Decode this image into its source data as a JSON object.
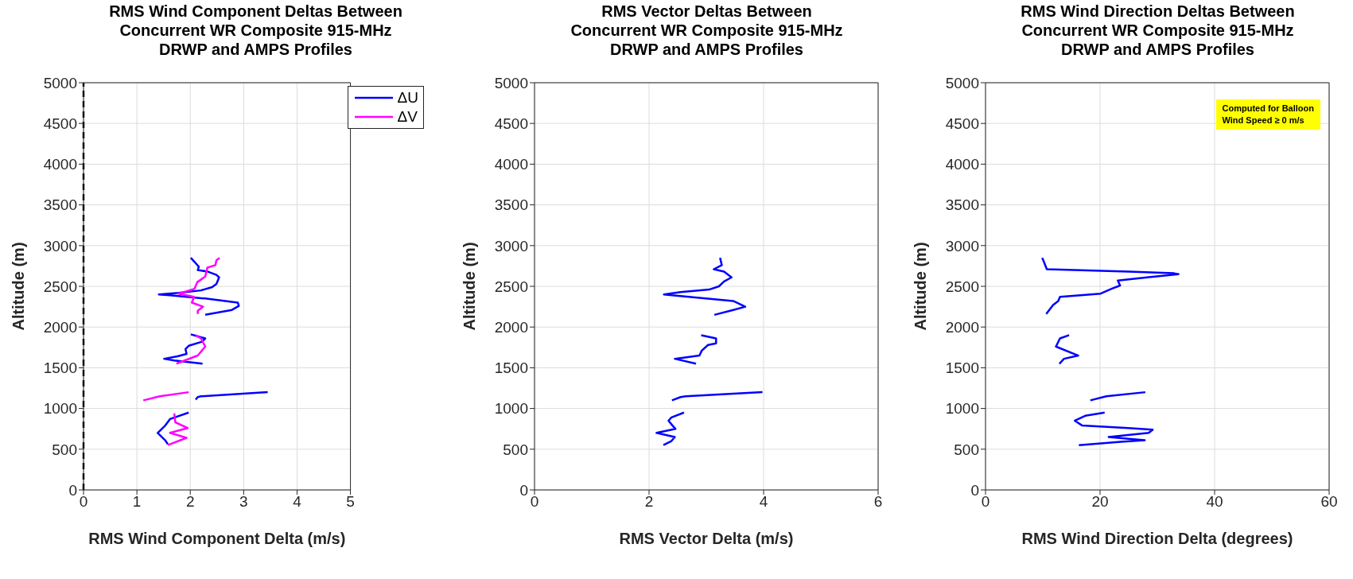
{
  "chart_data": [
    {
      "type": "line",
      "title": "RMS Wind Component Deltas Between\nConcurrent WR Composite 915-MHz\nDRWP and AMPS Profiles",
      "xlabel": "RMS Wind Component Delta (m/s)",
      "ylabel": "Altitude (m)",
      "xlim": [
        0,
        5
      ],
      "xticks": [
        0,
        1,
        2,
        3,
        4,
        5
      ],
      "ylim": [
        0,
        5000
      ],
      "yticks": [
        0,
        500,
        1000,
        1500,
        2000,
        2500,
        3000,
        3500,
        4000,
        4500,
        5000
      ],
      "grid": true,
      "legend": "top right",
      "ref_lines": [
        {
          "axis": "x",
          "value": 0,
          "color": "#000000",
          "line_style": "dashed"
        }
      ],
      "series": [
        {
          "name": "ΔU",
          "color": "#0000ff",
          "x": [
            2.01,
            2.08,
            2.16,
            2.14,
            2.33,
            2.49,
            2.54,
            2.49,
            2.41,
            2.2,
            1.78,
            1.41,
            1.62,
            2.28,
            2.89,
            2.91,
            2.78,
            2.28,
            null,
            2.01,
            2.12,
            2.28,
            2.22,
            1.97,
            1.91,
            1.93,
            1.76,
            1.51,
            1.7,
            2.23,
            null,
            3.45,
            2.2,
            2.14,
            2.1,
            null,
            1.97,
            1.62,
            1.53,
            1.39,
            1.53,
            1.58
          ],
          "values": [
            2850,
            2800,
            2740,
            2700,
            2680,
            2640,
            2610,
            2530,
            2490,
            2450,
            2420,
            2400,
            2390,
            2350,
            2300,
            2260,
            2210,
            2150,
            null,
            1910,
            1890,
            1860,
            1820,
            1770,
            1730,
            1670,
            1640,
            1610,
            1590,
            1550,
            null,
            1200,
            1150,
            1140,
            1110,
            null,
            950,
            870,
            790,
            700,
            610,
            560
          ]
        },
        {
          "name": "ΔV",
          "color": "#ff00ff",
          "x": [
            2.55,
            2.49,
            2.47,
            2.32,
            2.28,
            2.13,
            2.08,
            1.78,
            2.07,
            2.03,
            2.24,
            2.14,
            2.14,
            null,
            2.1,
            2.2,
            2.28,
            2.14,
            1.74,
            null,
            1.97,
            1.43,
            1.12,
            null,
            1.7,
            1.72,
            1.95,
            1.62,
            1.93,
            1.58
          ],
          "values": [
            2850,
            2820,
            2760,
            2730,
            2620,
            2550,
            2470,
            2410,
            2370,
            2300,
            2250,
            2200,
            2160,
            null,
            1900,
            1860,
            1760,
            1650,
            1550,
            null,
            1200,
            1150,
            1100,
            null,
            940,
            830,
            760,
            700,
            640,
            550
          ]
        }
      ]
    },
    {
      "type": "line",
      "title": "RMS Vector Deltas Between\nConcurrent WR Composite 915-MHz\nDRWP and AMPS Profiles",
      "xlabel": "RMS Vector Delta (m/s)",
      "ylabel": "Altitude (m)",
      "xlim": [
        0,
        6
      ],
      "xticks": [
        0,
        2,
        4,
        6
      ],
      "ylim": [
        0,
        5000
      ],
      "yticks": [
        0,
        500,
        1000,
        1500,
        2000,
        2500,
        3000,
        3500,
        4000,
        4500,
        5000
      ],
      "grid": true,
      "series": [
        {
          "color": "#0000ff",
          "x": [
            3.24,
            3.27,
            3.13,
            3.31,
            3.44,
            3.31,
            3.22,
            3.05,
            2.55,
            2.26,
            2.55,
            3.47,
            3.68,
            3.47,
            3.14,
            null,
            2.91,
            3.17,
            3.17,
            3.03,
            2.92,
            2.88,
            2.45,
            2.82,
            null,
            3.98,
            2.64,
            2.55,
            2.4,
            null,
            2.61,
            2.39,
            2.34,
            2.41,
            2.46,
            2.13,
            2.45,
            2.39,
            2.25
          ],
          "values": [
            2850,
            2760,
            2710,
            2680,
            2610,
            2560,
            2500,
            2460,
            2430,
            2400,
            2380,
            2320,
            2250,
            2210,
            2150,
            null,
            1900,
            1860,
            1800,
            1780,
            1710,
            1650,
            1610,
            1550,
            null,
            1200,
            1150,
            1140,
            1100,
            null,
            950,
            890,
            850,
            790,
            750,
            700,
            650,
            600,
            550
          ]
        }
      ]
    },
    {
      "type": "line",
      "title": "RMS Wind Direction Deltas Between\nConcurrent WR Composite 915-MHz\nDRWP and AMPS Profiles",
      "xlabel": "RMS Wind Direction Delta (degrees)",
      "ylabel": "Altitude (m)",
      "xlim": [
        0,
        60
      ],
      "xticks": [
        0,
        20,
        40,
        60
      ],
      "ylim": [
        0,
        5000
      ],
      "yticks": [
        0,
        500,
        1000,
        1500,
        2000,
        2500,
        3000,
        3500,
        4000,
        4500,
        5000
      ],
      "grid": true,
      "annotations": [
        "Computed for Balloon\nWind Speed ≥ 0 m/s"
      ],
      "series": [
        {
          "color": "#0000ff",
          "x": [
            9.9,
            10.2,
            10.7,
            25,
            32.9,
            33.7,
            28.2,
            23.1,
            23.5,
            22,
            20.1,
            13,
            12.7,
            11.8,
            10.6,
            null,
            14.6,
            13,
            12.3,
            16.2,
            13.7,
            12.9,
            null,
            27.9,
            21.1,
            18.3,
            null,
            20.8,
            17.4,
            15.6,
            16.9,
            25,
            29.2,
            28.5,
            21.5,
            27.8,
            23.6,
            16.3
          ],
          "values": [
            2850,
            2800,
            2710,
            2680,
            2660,
            2650,
            2610,
            2570,
            2510,
            2470,
            2410,
            2370,
            2320,
            2270,
            2160,
            null,
            1900,
            1860,
            1760,
            1650,
            1610,
            1550,
            null,
            1200,
            1150,
            1100,
            null,
            950,
            910,
            850,
            790,
            760,
            740,
            700,
            650,
            610,
            590,
            550
          ]
        }
      ]
    }
  ]
}
